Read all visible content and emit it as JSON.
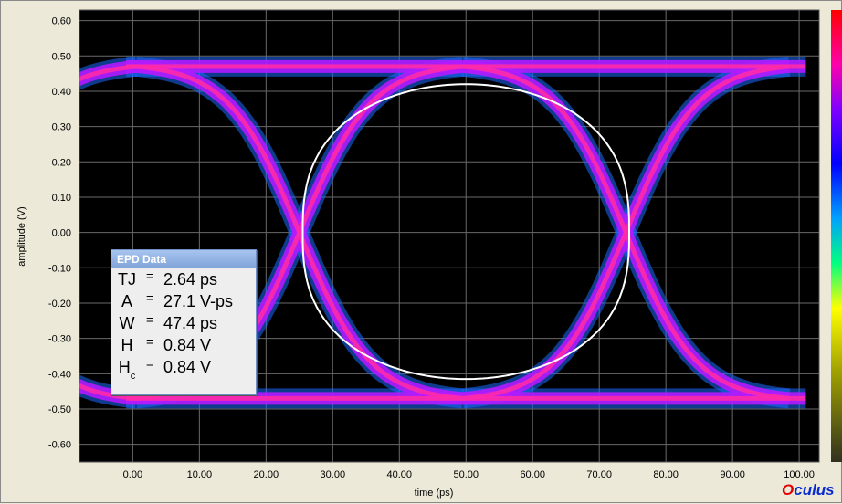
{
  "chart_data": {
    "type": "line",
    "title": "",
    "xlabel": "time (ps)",
    "ylabel": "amplitude (V)",
    "xlim": [
      -8,
      103
    ],
    "ylim": [
      -0.65,
      0.63
    ],
    "x_ticks": [
      0,
      10,
      20,
      30,
      40,
      50,
      60,
      70,
      80,
      90,
      100
    ],
    "x_tick_labels": [
      "0.00",
      "10.00",
      "20.00",
      "30.00",
      "40.00",
      "50.00",
      "60.00",
      "70.00",
      "80.00",
      "90.00",
      "100.00"
    ],
    "y_ticks": [
      0.6,
      0.5,
      0.4,
      0.3,
      0.2,
      0.1,
      0,
      -0.1,
      -0.2,
      -0.3,
      -0.4,
      -0.5,
      -0.6
    ],
    "y_tick_labels": [
      "0.60",
      "0.50",
      "0.40",
      "0.30",
      "0.20",
      "0.10",
      "0.00",
      "-0.10",
      "-0.20",
      "-0.30",
      "-0.40",
      "-0.50",
      "-0.60"
    ],
    "grid": true,
    "background": "#000000",
    "eye": {
      "high_level": 0.47,
      "low_level": -0.47,
      "crossings": [
        25,
        74
      ],
      "crossing_level": 0.0,
      "eye_center": 50,
      "eye_inner_top": 0.42,
      "eye_inner_bottom": -0.415
    },
    "colors": {
      "dense": "#ff2aa8",
      "mid": "#b21bff",
      "sparse": "#1a6bff",
      "contour": "#ffffff",
      "grid": "#6a6a6a"
    }
  },
  "epd_panel": {
    "title": "EPD Data",
    "rows": [
      {
        "label": "TJ",
        "sub": "",
        "value": "2.64 ps"
      },
      {
        "label": "A",
        "sub": "",
        "value": "27.1 V-ps"
      },
      {
        "label": "W",
        "sub": "",
        "value": "47.4 ps"
      },
      {
        "label": "H",
        "sub": "",
        "value": "0.84 V"
      },
      {
        "label": "H",
        "sub": "c",
        "value": "0.84 V"
      }
    ],
    "equals": "="
  },
  "brand": {
    "first": "O",
    "rest": "culus"
  }
}
